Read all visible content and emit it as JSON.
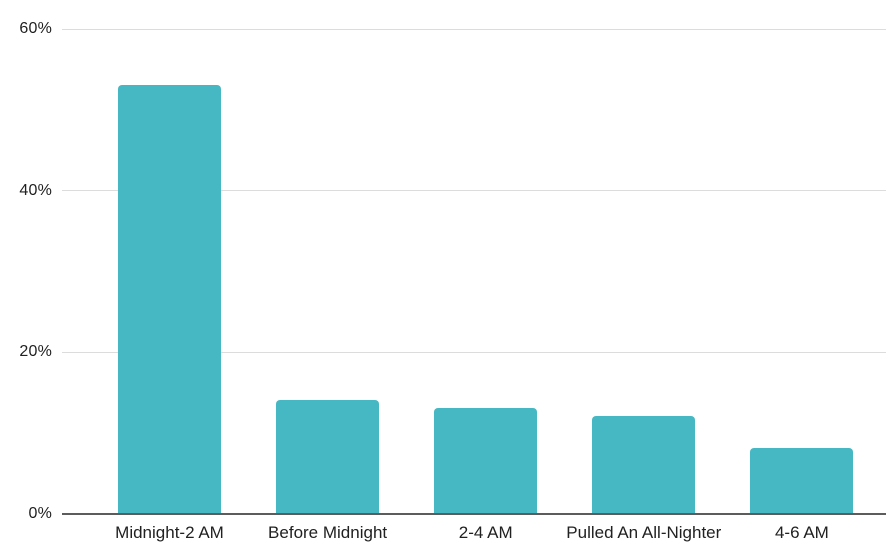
{
  "chart_data": {
    "type": "bar",
    "title": "",
    "xlabel": "",
    "ylabel": "",
    "categories": [
      "Midnight-2 AM",
      "Before Midnight",
      "2-4 AM",
      "Pulled An All-Nighter",
      "4-6 AM"
    ],
    "values": [
      53,
      14,
      13,
      12,
      8
    ],
    "value_unit": "%",
    "ylim": [
      0,
      60
    ],
    "yticks": [
      0,
      20,
      40,
      60
    ],
    "ytick_labels": [
      "0%",
      "20%",
      "40%",
      "60%"
    ],
    "grid": true,
    "legend": "none",
    "colors": {
      "bar": "#46b8c3",
      "gridline": "#dcdcdc",
      "axis_line": "#5c5c5c",
      "tick_label": "#212121",
      "background": "#ffffff"
    }
  }
}
